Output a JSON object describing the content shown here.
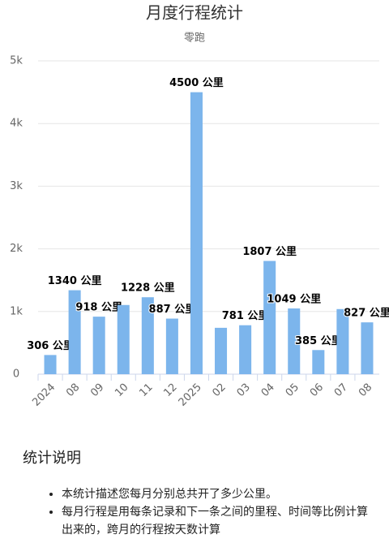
{
  "chart_data": {
    "type": "bar",
    "title": "月度行程统计",
    "subtitle": "零跑",
    "categories": [
      "2024",
      "08",
      "09",
      "10",
      "11",
      "12",
      "2025",
      "02",
      "03",
      "04",
      "05",
      "06",
      "07",
      "08"
    ],
    "values": [
      306,
      1340,
      918,
      1104,
      1228,
      887,
      4500,
      740,
      781,
      1807,
      1049,
      385,
      1039,
      827
    ],
    "value_labels": [
      "306 公里",
      "1340 公里",
      "918 公里",
      null,
      "1228 公里",
      "887 公里",
      "4500 公里",
      null,
      "781 公里",
      "1807 公里",
      "1049 公里",
      "385 公里",
      null,
      "827 公里"
    ],
    "color": "#7cb5ec",
    "ylim": [
      0,
      5000
    ],
    "yticks": [
      0,
      {
        "value": 1000,
        "label": "1k"
      },
      {
        "value": 2000,
        "label": "2k"
      },
      {
        "value": 3000,
        "label": "3k"
      },
      {
        "value": 4000,
        "label": "4k"
      },
      {
        "value": 5000,
        "label": "5k"
      }
    ],
    "grid": true
  },
  "notes": {
    "title": "统计说明",
    "items": [
      "本统计描述您每月分别总共开了多少公里。",
      "每月行程是用每条记录和下一条之间的里程、时间等比例计算出来的，跨月的行程按天数计算"
    ]
  }
}
